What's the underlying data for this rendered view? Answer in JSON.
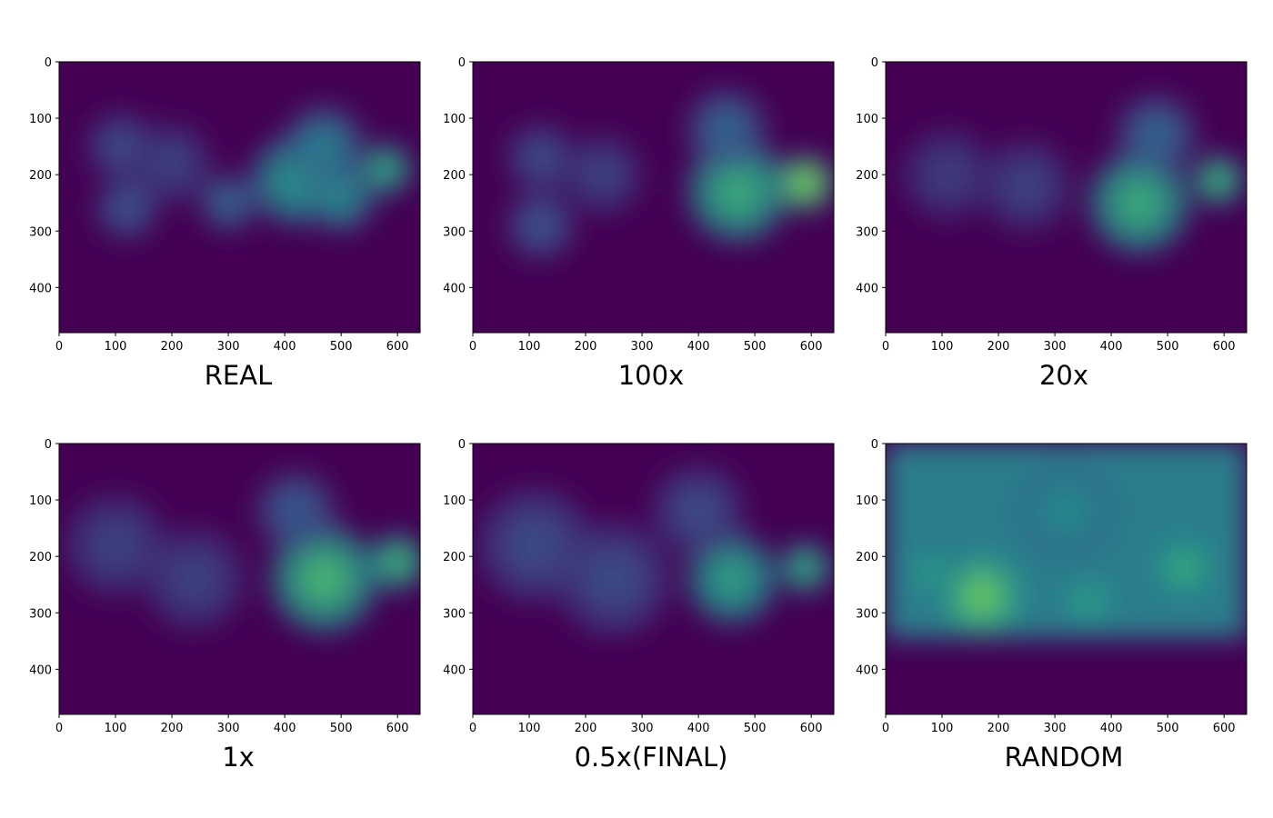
{
  "figure": {
    "description_colormap": "viridis"
  },
  "chart_data": [
    {
      "type": "heatmap",
      "title": "REAL",
      "xlim": [
        0,
        640
      ],
      "ylim": [
        480,
        0
      ],
      "xticks": [
        0,
        100,
        200,
        300,
        400,
        500,
        600
      ],
      "yticks": [
        0,
        100,
        200,
        300,
        400
      ],
      "blobs": [
        {
          "x": 110,
          "y": 150,
          "r": 60,
          "v": 0.25
        },
        {
          "x": 200,
          "y": 180,
          "r": 70,
          "v": 0.22
        },
        {
          "x": 120,
          "y": 260,
          "r": 55,
          "v": 0.28
        },
        {
          "x": 300,
          "y": 250,
          "r": 50,
          "v": 0.35
        },
        {
          "x": 420,
          "y": 210,
          "r": 80,
          "v": 0.55
        },
        {
          "x": 470,
          "y": 150,
          "r": 70,
          "v": 0.45
        },
        {
          "x": 580,
          "y": 190,
          "r": 45,
          "v": 0.65
        },
        {
          "x": 500,
          "y": 240,
          "r": 60,
          "v": 0.5
        }
      ]
    },
    {
      "type": "heatmap",
      "title": "100x",
      "xlim": [
        0,
        640
      ],
      "ylim": [
        480,
        0
      ],
      "xticks": [
        0,
        100,
        200,
        300,
        400,
        500,
        600
      ],
      "yticks": [
        0,
        100,
        200,
        300,
        400
      ],
      "blobs": [
        {
          "x": 120,
          "y": 170,
          "r": 60,
          "v": 0.25
        },
        {
          "x": 230,
          "y": 200,
          "r": 70,
          "v": 0.22
        },
        {
          "x": 120,
          "y": 290,
          "r": 60,
          "v": 0.28
        },
        {
          "x": 470,
          "y": 230,
          "r": 90,
          "v": 0.65
        },
        {
          "x": 590,
          "y": 215,
          "r": 50,
          "v": 0.85
        },
        {
          "x": 450,
          "y": 120,
          "r": 70,
          "v": 0.35
        }
      ]
    },
    {
      "type": "heatmap",
      "title": "20x",
      "xlim": [
        0,
        640
      ],
      "ylim": [
        480,
        0
      ],
      "xticks": [
        0,
        100,
        200,
        300,
        400,
        500,
        600
      ],
      "yticks": [
        0,
        100,
        200,
        300,
        400
      ],
      "blobs": [
        {
          "x": 110,
          "y": 200,
          "r": 80,
          "v": 0.2
        },
        {
          "x": 250,
          "y": 220,
          "r": 80,
          "v": 0.22
        },
        {
          "x": 450,
          "y": 250,
          "r": 90,
          "v": 0.65
        },
        {
          "x": 590,
          "y": 210,
          "r": 45,
          "v": 0.7
        },
        {
          "x": 480,
          "y": 130,
          "r": 70,
          "v": 0.35
        }
      ]
    },
    {
      "type": "heatmap",
      "title": "1x",
      "xlim": [
        0,
        640
      ],
      "ylim": [
        480,
        0
      ],
      "xticks": [
        0,
        100,
        200,
        300,
        400,
        500,
        600
      ],
      "yticks": [
        0,
        100,
        200,
        300,
        400
      ],
      "blobs": [
        {
          "x": 100,
          "y": 180,
          "r": 90,
          "v": 0.22
        },
        {
          "x": 240,
          "y": 240,
          "r": 90,
          "v": 0.22
        },
        {
          "x": 470,
          "y": 240,
          "r": 95,
          "v": 0.7
        },
        {
          "x": 600,
          "y": 210,
          "r": 50,
          "v": 0.7
        },
        {
          "x": 420,
          "y": 120,
          "r": 70,
          "v": 0.3
        }
      ]
    },
    {
      "type": "heatmap",
      "title": "0.5x(FINAL)",
      "xlim": [
        0,
        640
      ],
      "ylim": [
        480,
        0
      ],
      "xticks": [
        0,
        100,
        200,
        300,
        400,
        500,
        600
      ],
      "yticks": [
        0,
        100,
        200,
        300,
        400
      ],
      "blobs": [
        {
          "x": 110,
          "y": 180,
          "r": 100,
          "v": 0.25
        },
        {
          "x": 250,
          "y": 240,
          "r": 100,
          "v": 0.25
        },
        {
          "x": 460,
          "y": 240,
          "r": 80,
          "v": 0.6
        },
        {
          "x": 590,
          "y": 220,
          "r": 45,
          "v": 0.65
        },
        {
          "x": 400,
          "y": 120,
          "r": 80,
          "v": 0.25
        }
      ]
    },
    {
      "type": "heatmap",
      "title": "RANDOM",
      "xlim": [
        0,
        640
      ],
      "ylim": [
        480,
        0
      ],
      "xticks": [
        0,
        100,
        200,
        300,
        400,
        500,
        600
      ],
      "yticks": [
        0,
        100,
        200,
        300,
        400
      ],
      "fill_region": {
        "x0": 0,
        "x1": 640,
        "y0": 0,
        "y1": 345,
        "base": 0.42
      },
      "blobs": [
        {
          "x": 170,
          "y": 270,
          "r": 70,
          "v": 0.8
        },
        {
          "x": 80,
          "y": 230,
          "r": 50,
          "v": 0.6
        },
        {
          "x": 360,
          "y": 280,
          "r": 60,
          "v": 0.6
        },
        {
          "x": 530,
          "y": 220,
          "r": 60,
          "v": 0.65
        },
        {
          "x": 320,
          "y": 120,
          "r": 90,
          "v": 0.5
        }
      ]
    }
  ]
}
